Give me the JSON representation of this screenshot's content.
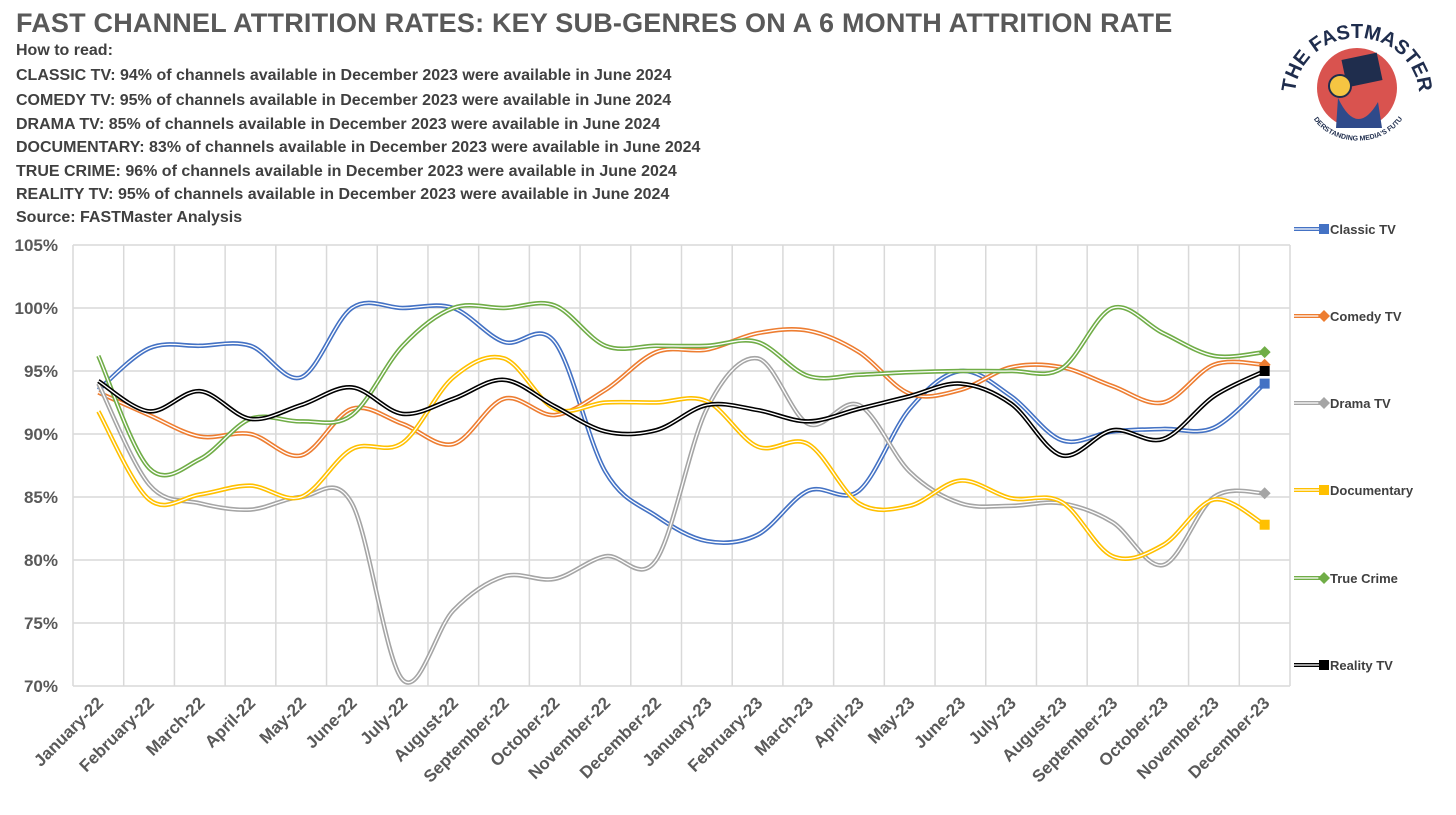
{
  "header": {
    "title": "FAST CHANNEL ATTRITION RATES: KEY SUB-GENRES ON A 6 MONTH ATTRITION RATE",
    "how_to_read": "How to read:",
    "lines": [
      "CLASSIC TV: 94% of channels available in December 2023 were available in June 2024",
      "COMEDY TV: 95% of channels available in December 2023 were available in June 2024",
      "DRAMA TV: 85% of channels available in December 2023 were available in June 2024",
      "DOCUMENTARY: 83% of channels available in December 2023 were available in June 2024",
      "TRUE CRIME: 96% of channels available in December 2023 were available in June 2024",
      "REALITY TV: 95% of channels available in December 2023 were available in June 2024"
    ],
    "source": "Source: FASTMaster Analysis"
  },
  "logo": {
    "text_top": "THE FASTMASTER",
    "text_bottom": "UNDERSTANDING MEDIA'S FUTURE"
  },
  "chart_data": {
    "type": "line",
    "title": "FAST CHANNEL ATTRITION RATES: KEY SUB-GENRES ON A 6 MONTH ATTRITION RATE",
    "xlabel": "",
    "ylabel": "",
    "ylim": [
      70,
      105
    ],
    "yticks": [
      "70%",
      "75%",
      "80%",
      "85%",
      "90%",
      "95%",
      "100%",
      "105%"
    ],
    "grid": true,
    "legend_placement": "right",
    "categories": [
      "January-22",
      "February-22",
      "March-22",
      "April-22",
      "May-22",
      "June-22",
      "July-22",
      "August-22",
      "September-22",
      "October-22",
      "November-22",
      "December-22",
      "January-23",
      "February-23",
      "March-23",
      "April-23",
      "May-23",
      "June-23",
      "July-23",
      "August-23",
      "September-23",
      "October-23",
      "November-23",
      "December-23"
    ],
    "series": [
      {
        "name": "Classic TV",
        "color": "#4472C4",
        "marker": "square",
        "values": [
          93.5,
          96.8,
          97,
          97,
          94.5,
          100,
          100,
          100,
          97.3,
          97.3,
          87,
          83.5,
          81.5,
          82,
          85.5,
          85.5,
          92,
          95,
          93,
          89.5,
          90.2,
          90.4,
          90.5,
          94
        ]
      },
      {
        "name": "Comedy TV",
        "color": "#ED7D31",
        "marker": "diamond",
        "values": [
          93.3,
          91.5,
          89.8,
          90,
          88.3,
          92,
          90.8,
          89.2,
          92.8,
          91.5,
          93.5,
          96.5,
          96.7,
          98,
          98.2,
          96.5,
          93.2,
          93.5,
          95.3,
          95.3,
          93.8,
          92.5,
          95.5,
          95.5
        ]
      },
      {
        "name": "Drama TV",
        "color": "#A5A5A5",
        "marker": "diamond",
        "values": [
          94,
          86,
          84.5,
          84,
          85,
          84.5,
          70.5,
          76,
          78.7,
          78.5,
          80.3,
          80,
          92,
          96,
          90.8,
          92.3,
          87,
          84.5,
          84.3,
          84.5,
          83,
          79.6,
          85,
          85.3
        ]
      },
      {
        "name": "Documentary",
        "color": "#FFC000",
        "marker": "square",
        "values": [
          91.8,
          84.8,
          85.2,
          85.9,
          85,
          88.8,
          89.3,
          94.5,
          96,
          92,
          92.5,
          92.5,
          92.6,
          89,
          89.2,
          84.5,
          84.3,
          86.3,
          84.9,
          84.6,
          80.3,
          81.2,
          84.8,
          82.8
        ]
      },
      {
        "name": "True Crime",
        "color": "#70AD47",
        "marker": "diamond",
        "values": [
          96.2,
          87.3,
          88,
          91.2,
          91,
          91.5,
          97,
          100,
          100,
          100.2,
          97,
          97,
          97,
          97.3,
          94.6,
          94.7,
          94.9,
          95,
          95,
          95.2,
          100,
          98,
          96.2,
          96.5
        ]
      },
      {
        "name": "Reality TV",
        "color": "#000000",
        "marker": "square",
        "values": [
          94.2,
          91.8,
          93.4,
          91.2,
          92.3,
          93.7,
          91.6,
          92.8,
          94.3,
          92.2,
          90.2,
          90.3,
          92.3,
          91.9,
          91,
          92,
          93,
          94,
          92.4,
          88.3,
          90.3,
          89.6,
          93,
          95
        ]
      }
    ]
  }
}
